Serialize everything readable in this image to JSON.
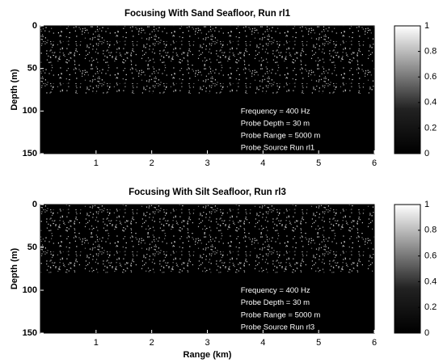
{
  "chart_data": [
    {
      "type": "heatmap",
      "title": "Focusing With Sand Seafloor, Run rl1",
      "ylabel": "Depth (m)",
      "xlim": [
        0,
        6
      ],
      "xticks": [
        1,
        2,
        3,
        4,
        5,
        6
      ],
      "ylim": [
        0,
        150
      ],
      "yticks": [
        0,
        50,
        100,
        150
      ],
      "y_inverted": true,
      "clim": [
        0,
        1
      ],
      "cticks": [
        0,
        0.2,
        0.4,
        0.6,
        0.8,
        1
      ],
      "annotations": [
        "Frequency = 400 Hz",
        "Probe Depth = 30 m",
        "Probe Range = 5000 m",
        "Probe Source Run rl1"
      ]
    },
    {
      "type": "heatmap",
      "title": "Focusing With Silt Seafloor, Run rl3",
      "xlabel": "Range (km)",
      "ylabel": "Depth (m)",
      "xlim": [
        0,
        6
      ],
      "xticks": [
        1,
        2,
        3,
        4,
        5,
        6
      ],
      "ylim": [
        0,
        150
      ],
      "yticks": [
        0,
        50,
        100,
        150
      ],
      "y_inverted": true,
      "clim": [
        0,
        1
      ],
      "cticks": [
        0,
        0.2,
        0.4,
        0.6,
        0.8,
        1
      ],
      "annotations": [
        "Frequency = 400 Hz",
        "Probe Depth = 30 m",
        "Probe Range = 5000 m",
        "Probe Source Run rl3"
      ]
    }
  ]
}
